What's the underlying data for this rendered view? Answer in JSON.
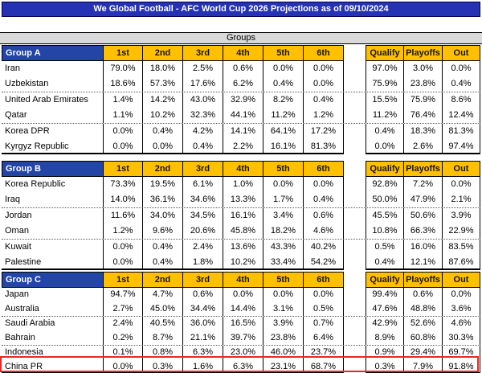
{
  "title": "We Global Football - AFC World Cup 2026 Projections as of 09/10/2024",
  "section_header": "Groups",
  "position_headers": [
    "1st",
    "2nd",
    "3rd",
    "4th",
    "5th",
    "6th"
  ],
  "outcome_headers": [
    "Qualify",
    "Playoffs",
    "Out"
  ],
  "groups": [
    {
      "name": "Group A",
      "teams": [
        {
          "team": "Iran",
          "positions": [
            "79.0%",
            "18.0%",
            "2.5%",
            "0.6%",
            "0.0%",
            "0.0%"
          ],
          "outcomes": [
            "97.0%",
            "3.0%",
            "0.0%"
          ]
        },
        {
          "team": "Uzbekistan",
          "positions": [
            "18.6%",
            "57.3%",
            "17.6%",
            "6.2%",
            "0.4%",
            "0.0%"
          ],
          "outcomes": [
            "75.9%",
            "23.8%",
            "0.4%"
          ]
        },
        {
          "team": "United Arab Emirates",
          "positions": [
            "1.4%",
            "14.2%",
            "43.0%",
            "32.9%",
            "8.2%",
            "0.4%"
          ],
          "outcomes": [
            "15.5%",
            "75.9%",
            "8.6%"
          ]
        },
        {
          "team": "Qatar",
          "positions": [
            "1.1%",
            "10.2%",
            "32.3%",
            "44.1%",
            "11.2%",
            "1.2%"
          ],
          "outcomes": [
            "11.2%",
            "76.4%",
            "12.4%"
          ]
        },
        {
          "team": "Korea DPR",
          "positions": [
            "0.0%",
            "0.4%",
            "4.2%",
            "14.1%",
            "64.1%",
            "17.2%"
          ],
          "outcomes": [
            "0.4%",
            "18.3%",
            "81.3%"
          ]
        },
        {
          "team": "Kyrgyz Republic",
          "positions": [
            "0.0%",
            "0.0%",
            "0.4%",
            "2.2%",
            "16.1%",
            "81.3%"
          ],
          "outcomes": [
            "0.0%",
            "2.6%",
            "97.4%"
          ]
        }
      ]
    },
    {
      "name": "Group B",
      "teams": [
        {
          "team": "Korea Republic",
          "positions": [
            "73.3%",
            "19.5%",
            "6.1%",
            "1.0%",
            "0.0%",
            "0.0%"
          ],
          "outcomes": [
            "92.8%",
            "7.2%",
            "0.0%"
          ]
        },
        {
          "team": "Iraq",
          "positions": [
            "14.0%",
            "36.1%",
            "34.6%",
            "13.3%",
            "1.7%",
            "0.4%"
          ],
          "outcomes": [
            "50.0%",
            "47.9%",
            "2.1%"
          ]
        },
        {
          "team": "Jordan",
          "positions": [
            "11.6%",
            "34.0%",
            "34.5%",
            "16.1%",
            "3.4%",
            "0.6%"
          ],
          "outcomes": [
            "45.5%",
            "50.6%",
            "3.9%"
          ]
        },
        {
          "team": "Oman",
          "positions": [
            "1.2%",
            "9.6%",
            "20.6%",
            "45.8%",
            "18.2%",
            "4.6%"
          ],
          "outcomes": [
            "10.8%",
            "66.3%",
            "22.9%"
          ]
        },
        {
          "team": "Kuwait",
          "positions": [
            "0.0%",
            "0.4%",
            "2.4%",
            "13.6%",
            "43.3%",
            "40.2%"
          ],
          "outcomes": [
            "0.5%",
            "16.0%",
            "83.5%"
          ]
        },
        {
          "team": "Palestine",
          "positions": [
            "0.0%",
            "0.4%",
            "1.8%",
            "10.2%",
            "33.4%",
            "54.2%"
          ],
          "outcomes": [
            "0.4%",
            "12.1%",
            "87.6%"
          ]
        }
      ]
    },
    {
      "name": "Group C",
      "teams": [
        {
          "team": "Japan",
          "positions": [
            "94.7%",
            "4.7%",
            "0.6%",
            "0.0%",
            "0.0%",
            "0.0%"
          ],
          "outcomes": [
            "99.4%",
            "0.6%",
            "0.0%"
          ]
        },
        {
          "team": "Australia",
          "positions": [
            "2.7%",
            "45.0%",
            "34.4%",
            "14.4%",
            "3.1%",
            "0.5%"
          ],
          "outcomes": [
            "47.6%",
            "48.8%",
            "3.6%"
          ]
        },
        {
          "team": "Saudi Arabia",
          "positions": [
            "2.4%",
            "40.5%",
            "36.0%",
            "16.5%",
            "3.9%",
            "0.7%"
          ],
          "outcomes": [
            "42.9%",
            "52.6%",
            "4.6%"
          ]
        },
        {
          "team": "Bahrain",
          "positions": [
            "0.2%",
            "8.7%",
            "21.1%",
            "39.7%",
            "23.8%",
            "6.4%"
          ],
          "outcomes": [
            "8.9%",
            "60.8%",
            "30.3%"
          ]
        },
        {
          "team": "Indonesia",
          "positions": [
            "0.1%",
            "0.8%",
            "6.3%",
            "23.0%",
            "46.0%",
            "23.7%"
          ],
          "outcomes": [
            "0.9%",
            "29.4%",
            "69.7%"
          ]
        },
        {
          "team": "China PR",
          "positions": [
            "0.0%",
            "0.3%",
            "1.6%",
            "6.3%",
            "23.1%",
            "68.7%"
          ],
          "outcomes": [
            "0.3%",
            "7.9%",
            "91.8%"
          ]
        }
      ]
    }
  ],
  "highlight": {
    "team": "China PR",
    "group": "Group C"
  },
  "colors": {
    "title_bg": "#2532b4",
    "group_header_bg": "#2345a6",
    "column_header_bg": "#ffc000",
    "section_band_bg": "#d9d9d9",
    "highlight_border": "#e8291f"
  }
}
